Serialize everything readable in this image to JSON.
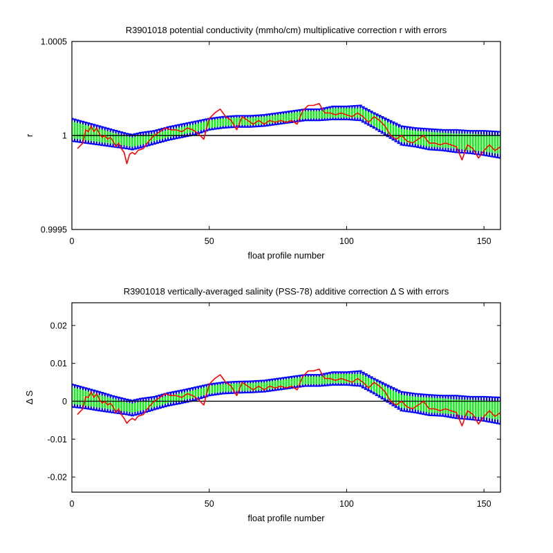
{
  "chart_data": [
    {
      "type": "line",
      "title": "R3901018 potential conductivity (mmho/cm) multiplicative correction r with errors",
      "xlabel": "float profile number",
      "ylabel": "r",
      "xlim": [
        0,
        156
      ],
      "ylim": [
        0.9995,
        1.0005
      ],
      "xticks": [
        0,
        50,
        100,
        150
      ],
      "xtick_labels": [
        "0",
        "50",
        "100",
        "150"
      ],
      "yticks": [
        0.9995,
        1.0,
        1.0005
      ],
      "ytick_labels": [
        "0.9995",
        "1",
        "1.0005"
      ],
      "reference_line": 1.0,
      "grid": false,
      "colors": {
        "error_outer": "#0000ff",
        "error_inner": "#00ff00",
        "measured": "#ff0000",
        "reference": "#000000"
      },
      "series": [
        {
          "role": "correction",
          "x": [
            0,
            5,
            10,
            15,
            20,
            22,
            25,
            30,
            35,
            40,
            45,
            50,
            55,
            60,
            65,
            70,
            75,
            80,
            85,
            90,
            95,
            100,
            105,
            110,
            115,
            120,
            125,
            130,
            135,
            140,
            145,
            150,
            156
          ],
          "y": [
            1.00003,
            1.000015,
            1.0,
            0.999985,
            0.99997,
            0.999965,
            0.999975,
            0.99999,
            1.00001,
            1.000025,
            1.00004,
            1.00006,
            1.00007,
            1.000075,
            1.000075,
            1.00008,
            1.00009,
            1.0001,
            1.00011,
            1.00011,
            1.00012,
            1.00012,
            1.00012,
            1.00008,
            1.00004,
            1.0,
            0.99999,
            0.99998,
            0.999975,
            0.99997,
            0.999965,
            0.99996,
            0.99995
          ]
        },
        {
          "role": "error_inner",
          "x": [
            0,
            5,
            10,
            15,
            20,
            22,
            25,
            30,
            35,
            40,
            45,
            50,
            55,
            60,
            65,
            70,
            75,
            80,
            85,
            90,
            95,
            100,
            105,
            110,
            115,
            120,
            125,
            130,
            135,
            140,
            145,
            150,
            156
          ],
          "y": [
            4.5e-05,
            4e-05,
            3.5e-05,
            3e-05,
            2.5e-05,
            2.5e-05,
            2.5e-05,
            2e-05,
            2e-05,
            2e-05,
            2e-05,
            2e-05,
            2e-05,
            2e-05,
            2e-05,
            2e-05,
            2e-05,
            2e-05,
            2e-05,
            2e-05,
            2.5e-05,
            2.5e-05,
            2.5e-05,
            3e-05,
            3e-05,
            3.5e-05,
            3.5e-05,
            4e-05,
            4e-05,
            4e-05,
            4.5e-05,
            4.5e-05,
            5e-05
          ]
        },
        {
          "role": "error_outer",
          "x": [
            0,
            5,
            10,
            15,
            20,
            22,
            25,
            30,
            35,
            40,
            45,
            50,
            55,
            60,
            65,
            70,
            75,
            80,
            85,
            90,
            95,
            100,
            105,
            110,
            115,
            120,
            125,
            130,
            135,
            140,
            145,
            150,
            156
          ],
          "y": [
            6e-05,
            5.5e-05,
            5e-05,
            4.5e-05,
            4e-05,
            4e-05,
            4e-05,
            3.5e-05,
            3.5e-05,
            3.5e-05,
            3.5e-05,
            3e-05,
            3e-05,
            3e-05,
            3e-05,
            3e-05,
            3e-05,
            3e-05,
            3e-05,
            3e-05,
            3.5e-05,
            3.5e-05,
            4e-05,
            4e-05,
            4.5e-05,
            5e-05,
            5e-05,
            5.5e-05,
            5.5e-05,
            6e-05,
            6e-05,
            6.5e-05,
            7e-05
          ]
        },
        {
          "role": "measured",
          "x": [
            2,
            4,
            5,
            6,
            7,
            8,
            9,
            10,
            11,
            12,
            13,
            14,
            15,
            16,
            17,
            18,
            19,
            20,
            21,
            22,
            23,
            24,
            26,
            28,
            30,
            32,
            34,
            36,
            38,
            40,
            42,
            44,
            46,
            48,
            50,
            52,
            54,
            56,
            58,
            60,
            62,
            64,
            66,
            68,
            70,
            72,
            74,
            76,
            78,
            80,
            82,
            84,
            86,
            88,
            90,
            92,
            94,
            96,
            98,
            100,
            102,
            104,
            106,
            108,
            110,
            112,
            114,
            116,
            118,
            120,
            122,
            124,
            126,
            128,
            130,
            132,
            134,
            136,
            138,
            140,
            142,
            144,
            146,
            148,
            150,
            152,
            154,
            156
          ],
          "y": [
            0.99993,
            0.99996,
            1.00003,
            1.00002,
            1.00005,
            1.00002,
            1.00004,
            1.00001,
            0.99999,
            1.0,
            0.99998,
            0.99999,
            0.99997,
            0.99994,
            0.99996,
            0.99993,
            0.99991,
            0.99985,
            0.9999,
            0.99991,
            0.9999,
            0.99992,
            0.99993,
            0.99997,
            1.0,
            1.00002,
            1.00004,
            1.00003,
            1.00003,
            1.00002,
            1.00004,
            1.00003,
            1.00001,
            0.99998,
            1.00009,
            1.00012,
            1.00014,
            1.0001,
            1.00008,
            1.00003,
            1.0001,
            1.00008,
            1.00006,
            1.00008,
            1.00006,
            1.00008,
            1.00007,
            1.00008,
            1.00007,
            1.00008,
            1.00006,
            1.00013,
            1.00016,
            1.00016,
            1.00017,
            1.00012,
            1.00012,
            1.00011,
            1.00012,
            1.00011,
            1.0001,
            1.00012,
            1.0001,
            1.00007,
            1.0001,
            1.00008,
            1.00005,
            1.0,
            0.99998,
            1.0,
            0.99997,
            0.99996,
            0.99998,
            1.0,
            0.99996,
            0.99996,
            0.99995,
            0.99996,
            0.99995,
            0.99994,
            0.99987,
            0.99995,
            0.99993,
            0.99988,
            0.99992,
            0.99995,
            0.99992,
            0.99994
          ]
        }
      ]
    },
    {
      "type": "line",
      "title": "R3901018 vertically-averaged salinity (PSS-78) additive correction Δ S with errors",
      "xlabel": "float profile number",
      "ylabel": "Δ S",
      "xlim": [
        0,
        156
      ],
      "ylim": [
        -0.024,
        0.026
      ],
      "xticks": [
        0,
        50,
        100,
        150
      ],
      "xtick_labels": [
        "0",
        "50",
        "100",
        "150"
      ],
      "yticks": [
        -0.02,
        -0.01,
        0,
        0.01,
        0.02
      ],
      "ytick_labels": [
        "-0.02",
        "-0.01",
        "0",
        "0.01",
        "0.02"
      ],
      "reference_line": 0,
      "grid": false,
      "colors": {
        "error_outer": "#0000ff",
        "error_inner": "#00ff00",
        "measured": "#ff0000",
        "reference": "#000000"
      },
      "series": [
        {
          "role": "correction",
          "x": [
            0,
            5,
            10,
            15,
            20,
            22,
            25,
            30,
            35,
            40,
            45,
            50,
            55,
            60,
            65,
            70,
            75,
            80,
            85,
            90,
            95,
            100,
            105,
            110,
            115,
            120,
            125,
            130,
            135,
            140,
            145,
            150,
            156
          ],
          "y": [
            0.0015,
            0.0008,
            0.0,
            -0.0008,
            -0.0015,
            -0.0018,
            -0.0013,
            -0.0005,
            0.0005,
            0.0012,
            0.002,
            0.003,
            0.0035,
            0.0037,
            0.0038,
            0.004,
            0.0045,
            0.005,
            0.0055,
            0.0055,
            0.006,
            0.006,
            0.006,
            0.004,
            0.002,
            0.0,
            -0.0005,
            -0.001,
            -0.0012,
            -0.0015,
            -0.0018,
            -0.002,
            -0.0025
          ]
        },
        {
          "role": "error_inner",
          "x": [
            0,
            5,
            10,
            15,
            20,
            22,
            25,
            30,
            35,
            40,
            45,
            50,
            55,
            60,
            65,
            70,
            75,
            80,
            85,
            90,
            95,
            100,
            105,
            110,
            115,
            120,
            125,
            130,
            135,
            140,
            145,
            150,
            156
          ],
          "y": [
            0.0022,
            0.002,
            0.0017,
            0.0015,
            0.0012,
            0.0012,
            0.0012,
            0.001,
            0.001,
            0.001,
            0.001,
            0.001,
            0.001,
            0.001,
            0.001,
            0.001,
            0.001,
            0.001,
            0.001,
            0.001,
            0.0012,
            0.0012,
            0.0012,
            0.0015,
            0.0015,
            0.0017,
            0.0017,
            0.002,
            0.002,
            0.002,
            0.0022,
            0.0022,
            0.0025
          ]
        },
        {
          "role": "error_outer",
          "x": [
            0,
            5,
            10,
            15,
            20,
            22,
            25,
            30,
            35,
            40,
            45,
            50,
            55,
            60,
            65,
            70,
            75,
            80,
            85,
            90,
            95,
            100,
            105,
            110,
            115,
            120,
            125,
            130,
            135,
            140,
            145,
            150,
            156
          ],
          "y": [
            0.003,
            0.0027,
            0.0025,
            0.0022,
            0.002,
            0.002,
            0.002,
            0.0017,
            0.0017,
            0.0017,
            0.0017,
            0.0015,
            0.0015,
            0.0015,
            0.0015,
            0.0015,
            0.0015,
            0.0015,
            0.0015,
            0.0015,
            0.0017,
            0.0017,
            0.002,
            0.002,
            0.0022,
            0.0025,
            0.0025,
            0.0027,
            0.0027,
            0.003,
            0.003,
            0.0032,
            0.0035
          ]
        },
        {
          "role": "measured",
          "x": [
            2,
            4,
            5,
            6,
            7,
            8,
            9,
            10,
            11,
            12,
            13,
            14,
            15,
            16,
            17,
            18,
            19,
            20,
            21,
            22,
            23,
            24,
            26,
            28,
            30,
            32,
            34,
            36,
            38,
            40,
            42,
            44,
            46,
            48,
            50,
            52,
            54,
            56,
            58,
            60,
            62,
            64,
            66,
            68,
            70,
            72,
            74,
            76,
            78,
            80,
            82,
            84,
            86,
            88,
            90,
            92,
            94,
            96,
            98,
            100,
            102,
            104,
            106,
            108,
            110,
            112,
            114,
            116,
            118,
            120,
            122,
            124,
            126,
            128,
            130,
            132,
            134,
            136,
            138,
            140,
            142,
            144,
            146,
            148,
            150,
            152,
            154,
            156
          ],
          "y": [
            -0.0035,
            -0.002,
            0.0012,
            0.001,
            0.0025,
            0.001,
            0.002,
            0.0005,
            -0.0005,
            0.0,
            -0.001,
            -0.0005,
            -0.0015,
            -0.003,
            -0.002,
            -0.0035,
            -0.0045,
            -0.0058,
            -0.005,
            -0.0045,
            -0.005,
            -0.004,
            -0.0035,
            -0.0015,
            0.0,
            0.001,
            0.002,
            0.0015,
            0.0015,
            0.001,
            0.002,
            0.0015,
            0.0005,
            -0.001,
            0.0045,
            0.006,
            0.007,
            0.005,
            0.004,
            0.0015,
            0.005,
            0.004,
            0.003,
            0.004,
            0.003,
            0.004,
            0.0035,
            0.004,
            0.0035,
            0.004,
            0.003,
            0.0065,
            0.008,
            0.008,
            0.0085,
            0.006,
            0.006,
            0.0055,
            0.006,
            0.0055,
            0.005,
            0.006,
            0.005,
            0.0035,
            0.005,
            0.004,
            0.0025,
            0.0,
            -0.001,
            0.0,
            -0.0015,
            -0.002,
            -0.001,
            0.0,
            -0.002,
            -0.002,
            -0.0025,
            -0.002,
            -0.0025,
            -0.003,
            -0.0065,
            -0.0025,
            -0.0035,
            -0.006,
            -0.004,
            -0.0025,
            -0.004,
            -0.003
          ]
        }
      ]
    }
  ]
}
